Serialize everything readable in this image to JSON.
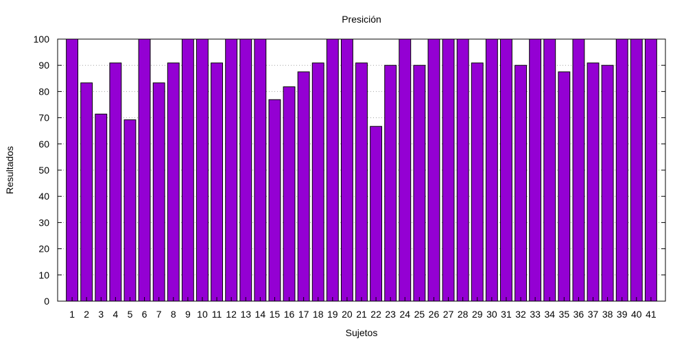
{
  "chart_data": {
    "type": "bar",
    "title": "Presición",
    "xlabel": "Sujetos",
    "ylabel": "Resultados",
    "ylim": [
      0,
      100
    ],
    "yticks": [
      0,
      10,
      20,
      30,
      40,
      50,
      60,
      70,
      80,
      90,
      100
    ],
    "grid": "horizontal dotted",
    "bar_color": "#9400d3",
    "categories": [
      "1",
      "2",
      "3",
      "4",
      "5",
      "6",
      "7",
      "8",
      "9",
      "10",
      "11",
      "12",
      "13",
      "14",
      "15",
      "16",
      "17",
      "18",
      "19",
      "20",
      "21",
      "22",
      "23",
      "24",
      "25",
      "26",
      "27",
      "28",
      "29",
      "30",
      "31",
      "32",
      "33",
      "34",
      "35",
      "36",
      "37",
      "38",
      "39",
      "40",
      "41"
    ],
    "values": [
      100,
      83.3,
      71.4,
      90.9,
      69.2,
      100,
      83.3,
      90.9,
      100,
      100,
      90.9,
      100,
      100,
      100,
      76.9,
      81.8,
      87.5,
      90.9,
      100,
      100,
      90.9,
      66.7,
      90,
      100,
      90,
      100,
      100,
      100,
      90.9,
      100,
      100,
      90,
      100,
      100,
      87.5,
      100,
      90.9,
      90,
      100,
      100,
      100
    ]
  }
}
